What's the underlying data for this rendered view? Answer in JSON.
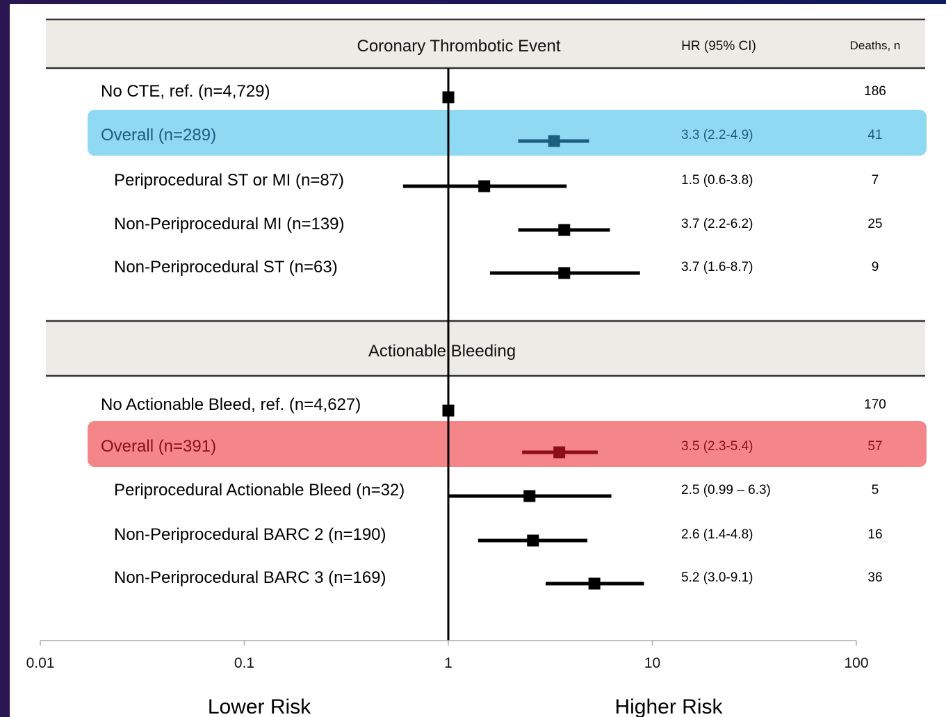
{
  "chart_data": {
    "type": "forest",
    "x_scale": "log",
    "xlim": [
      0.01,
      100
    ],
    "reference_line": 1,
    "x_ticks": [
      "0.01",
      "0.1",
      "1",
      "10",
      "100"
    ],
    "columns": {
      "hr": "HR (95% CI)",
      "deaths": "Deaths, n"
    },
    "footer": {
      "left": "Lower Risk",
      "right": "Higher Risk"
    },
    "colors": {
      "header_bg": "#ecebe6",
      "cte_highlight": "#8fd9f3",
      "cte_text": "#1a5f80",
      "bleed_highlight": "#f4868a",
      "bleed_text": "#8b0f14",
      "default": "#000000"
    },
    "sections": [
      {
        "title": "Coronary Thrombotic Event",
        "highlight": "cte",
        "rows": [
          {
            "label": "No CTE, ref. (n=4,729)",
            "hr_text": "",
            "deaths": "186",
            "hr": 1,
            "lo": 1,
            "hi": 1,
            "indent": false,
            "highlight": false
          },
          {
            "label": "Overall (n=289)",
            "hr_text": "3.3 (2.2-4.9)",
            "deaths": "41",
            "hr": 3.3,
            "lo": 2.2,
            "hi": 4.9,
            "indent": false,
            "highlight": true
          },
          {
            "label": "Periprocedural ST or MI  (n=87)",
            "hr_text": "1.5 (0.6-3.8)",
            "deaths": "7",
            "hr": 1.5,
            "lo": 0.6,
            "hi": 3.8,
            "indent": true,
            "highlight": false
          },
          {
            "label": "Non-Periprocedural MI (n=139)",
            "hr_text": "3.7 (2.2-6.2)",
            "deaths": "25",
            "hr": 3.7,
            "lo": 2.2,
            "hi": 6.2,
            "indent": true,
            "highlight": false
          },
          {
            "label": "Non-Periprocedural ST (n=63)",
            "hr_text": "3.7 (1.6-8.7)",
            "deaths": "9",
            "hr": 3.7,
            "lo": 1.6,
            "hi": 8.7,
            "indent": true,
            "highlight": false
          }
        ]
      },
      {
        "title": "Actionable Bleeding",
        "highlight": "bleed",
        "rows": [
          {
            "label": "No Actionable Bleed, ref. (n=4,627)",
            "hr_text": "",
            "deaths": "170",
            "hr": 1,
            "lo": 1,
            "hi": 1,
            "indent": false,
            "highlight": false
          },
          {
            "label": "Overall (n=391)",
            "hr_text": "3.5 (2.3-5.4)",
            "deaths": "57",
            "hr": 3.5,
            "lo": 2.3,
            "hi": 5.4,
            "indent": false,
            "highlight": true
          },
          {
            "label": "Periprocedural Actionable Bleed (n=32)",
            "hr_text": "2.5 (0.99 – 6.3)",
            "deaths": "5",
            "hr": 2.5,
            "lo": 0.99,
            "hi": 6.3,
            "indent": true,
            "highlight": false
          },
          {
            "label": "Non-Periprocedural BARC 2 (n=190)",
            "hr_text": "2.6 (1.4-4.8)",
            "deaths": "16",
            "hr": 2.6,
            "lo": 1.4,
            "hi": 4.8,
            "indent": true,
            "highlight": false
          },
          {
            "label": "Non-Periprocedural BARC 3 (n=169)",
            "hr_text": "5.2 (3.0-9.1)",
            "deaths": "36",
            "hr": 5.2,
            "lo": 3.0,
            "hi": 9.1,
            "indent": true,
            "highlight": false
          }
        ]
      }
    ]
  }
}
